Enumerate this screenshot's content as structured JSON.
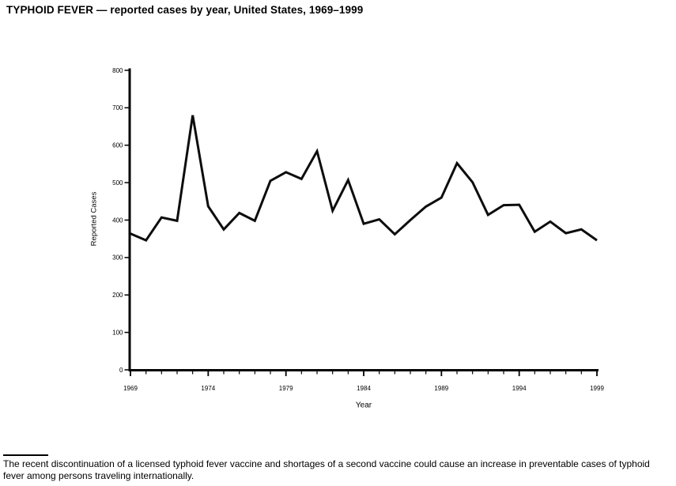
{
  "page": {
    "title": "TYPHOID FEVER — reported cases by year, United States, 1969–1999",
    "footnote": "The recent discontinuation of a licensed typhoid fever vaccine and shortages of a second vaccine could cause an increase in preventable cases of typhoid fever among persons traveling internationally."
  },
  "chart_data": {
    "type": "line",
    "title": "TYPHOID FEVER — reported cases by year, United States, 1969–1999",
    "xlabel": "Year",
    "ylabel": "Reported Cases",
    "x": [
      1969,
      1970,
      1971,
      1972,
      1973,
      1974,
      1975,
      1976,
      1977,
      1978,
      1979,
      1980,
      1981,
      1982,
      1983,
      1984,
      1985,
      1986,
      1987,
      1988,
      1989,
      1990,
      1991,
      1992,
      1993,
      1994,
      1995,
      1996,
      1997,
      1998,
      1999
    ],
    "values": [
      364,
      346,
      407,
      398,
      680,
      437,
      375,
      419,
      398,
      505,
      528,
      510,
      584,
      425,
      507,
      390,
      402,
      362,
      400,
      436,
      460,
      552,
      501,
      414,
      440,
      441,
      369,
      396,
      365,
      375,
      346
    ],
    "ylim": [
      0,
      800
    ],
    "yticks": [
      0,
      100,
      200,
      300,
      400,
      500,
      600,
      700,
      800
    ],
    "xticks_labeled": [
      1969,
      1974,
      1979,
      1984,
      1989,
      1994,
      1999
    ],
    "grid": false,
    "legend": "none",
    "line_color": "#0d0d0d",
    "axis_color": "#000000"
  }
}
